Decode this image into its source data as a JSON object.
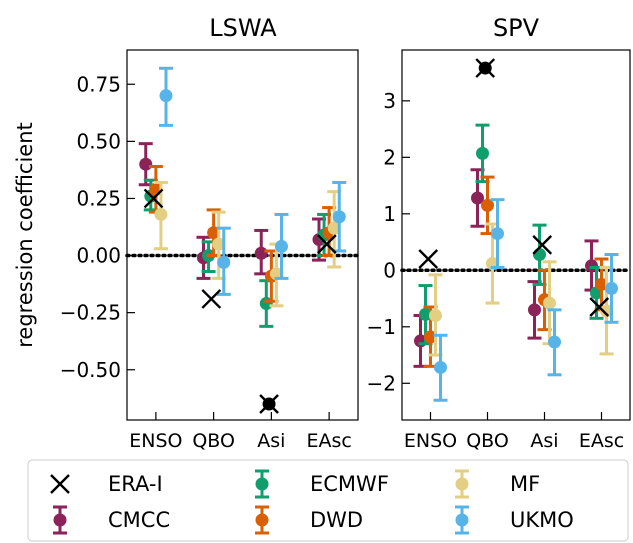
{
  "chart_data": [
    {
      "type": "errorbar",
      "title": "LSWA",
      "ylabel": "regression coefficient",
      "xlabel": "",
      "categories": [
        "ENSO",
        "QBO",
        "Asi",
        "EAsc"
      ],
      "ylim": [
        -0.72,
        0.9
      ],
      "yticks": [
        0.75,
        0.5,
        0.25,
        0.0,
        -0.25,
        -0.5
      ],
      "ytick_labels": [
        "0.75",
        "0.50",
        "0.25",
        "0.00",
        "−0.25",
        "−0.50"
      ],
      "zero_line": "dotted",
      "grid": false,
      "series": [
        {
          "name": "CMCC",
          "values": [
            0.4,
            -0.01,
            0.01,
            0.07
          ],
          "lower": [
            0.31,
            -0.1,
            -0.08,
            -0.02
          ],
          "upper": [
            0.49,
            0.08,
            0.11,
            0.16
          ]
        },
        {
          "name": "ECMWF",
          "values": [
            0.26,
            0.0,
            -0.21,
            0.09
          ],
          "lower": [
            0.2,
            -0.07,
            -0.31,
            0.0
          ],
          "upper": [
            0.33,
            0.06,
            -0.11,
            0.18
          ]
        },
        {
          "name": "DWD",
          "values": [
            0.29,
            0.1,
            -0.09,
            0.1
          ],
          "lower": [
            0.19,
            0.0,
            -0.2,
            0.0
          ],
          "upper": [
            0.39,
            0.2,
            0.02,
            0.21
          ]
        },
        {
          "name": "MF",
          "values": [
            0.18,
            0.05,
            -0.08,
            0.12
          ],
          "lower": [
            0.03,
            -0.1,
            -0.22,
            -0.05
          ],
          "upper": [
            0.32,
            0.19,
            0.05,
            0.28
          ]
        },
        {
          "name": "UKMO",
          "values": [
            0.7,
            -0.03,
            0.04,
            0.17
          ],
          "lower": [
            0.57,
            -0.17,
            -0.1,
            0.02
          ],
          "upper": [
            0.82,
            0.12,
            0.18,
            0.32
          ]
        }
      ],
      "reference": {
        "name": "ERA-I",
        "values": [
          0.25,
          -0.19,
          -0.65,
          0.05
        ]
      }
    },
    {
      "type": "errorbar",
      "title": "SPV",
      "ylabel": "",
      "xlabel": "",
      "categories": [
        "ENSO",
        "QBO",
        "Asi",
        "EAsc"
      ],
      "ylim": [
        -2.65,
        3.9
      ],
      "yticks": [
        3,
        2,
        1,
        0,
        -1,
        -2
      ],
      "ytick_labels": [
        "3",
        "2",
        "1",
        "0",
        "−1",
        "−2"
      ],
      "zero_line": "dotted",
      "grid": false,
      "series": [
        {
          "name": "CMCC",
          "values": [
            -1.25,
            1.28,
            -0.7,
            0.08
          ],
          "lower": [
            -1.7,
            0.78,
            -1.2,
            -0.35
          ],
          "upper": [
            -0.8,
            1.78,
            -0.2,
            0.52
          ]
        },
        {
          "name": "ECMWF",
          "values": [
            -0.78,
            2.07,
            0.28,
            -0.4
          ],
          "lower": [
            -1.3,
            1.57,
            -0.25,
            -0.85
          ],
          "upper": [
            -0.27,
            2.57,
            0.8,
            0.05
          ]
        },
        {
          "name": "DWD",
          "values": [
            -1.18,
            1.15,
            -0.52,
            -0.25
          ],
          "lower": [
            -1.7,
            0.65,
            -1.05,
            -0.7
          ],
          "upper": [
            -0.65,
            1.65,
            0.0,
            0.2
          ]
        },
        {
          "name": "MF",
          "values": [
            -0.8,
            0.12,
            -0.58,
            -0.72
          ],
          "lower": [
            -1.5,
            -0.58,
            -1.3,
            -1.48
          ],
          "upper": [
            -0.08,
            0.82,
            0.15,
            0.05
          ]
        },
        {
          "name": "UKMO",
          "values": [
            -1.72,
            0.65,
            -1.27,
            -0.32
          ],
          "lower": [
            -2.3,
            0.05,
            -1.85,
            -0.92
          ],
          "upper": [
            -1.15,
            1.25,
            -0.7,
            0.28
          ]
        }
      ],
      "reference": {
        "name": "ERA-I",
        "values": [
          0.2,
          3.58,
          0.45,
          -0.65
        ]
      }
    }
  ],
  "legend": {
    "placement": "bottom",
    "entries": [
      {
        "label": "ERA-I",
        "marker": "cross",
        "color": "#000000"
      },
      {
        "label": "ECMWF",
        "marker": "errorbar",
        "color": "#0f9e6c"
      },
      {
        "label": "MF",
        "marker": "errorbar",
        "color": "#e3cf83"
      },
      {
        "label": "CMCC",
        "marker": "errorbar",
        "color": "#8b2358"
      },
      {
        "label": "DWD",
        "marker": "errorbar",
        "color": "#d95f02"
      },
      {
        "label": "UKMO",
        "marker": "errorbar",
        "color": "#56b4e9"
      }
    ]
  },
  "colors": {
    "CMCC": "#8b2358",
    "ECMWF": "#0f9e6c",
    "DWD": "#d95f02",
    "MF": "#e3cf83",
    "UKMO": "#56b4e9",
    "ERA-I": "#000000"
  }
}
